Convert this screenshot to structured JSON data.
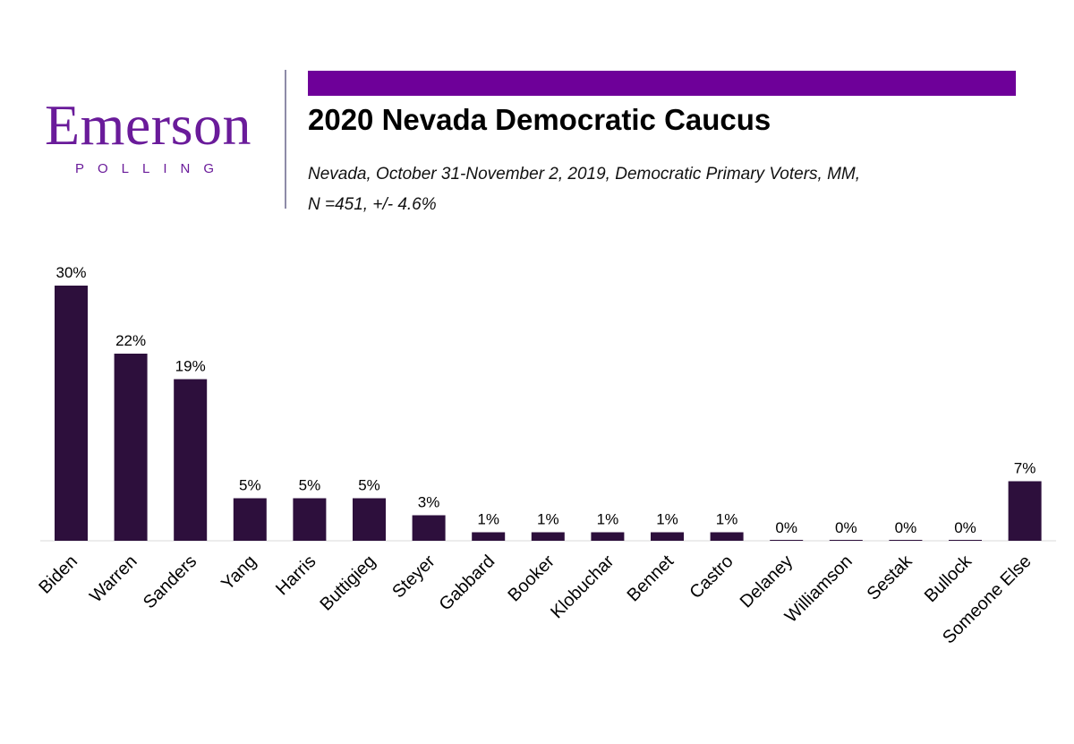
{
  "logo": {
    "word": "Emerson",
    "sub": "POLLING"
  },
  "header": {
    "title": "2020 Nevada Democratic Caucus",
    "subtitle_line1": "Nevada, October 31-November 2, 2019, Democratic Primary Voters, MM,",
    "subtitle_line2": "N =451, +/-  4.6%"
  },
  "colors": {
    "accent": "#6e0099",
    "bar": "#2d0f3c",
    "logo": "#6a1b9a"
  },
  "chart_data": {
    "type": "bar",
    "categories": [
      "Biden",
      "Warren",
      "Sanders",
      "Yang",
      "Harris",
      "Buttigieg",
      "Steyer",
      "Gabbard",
      "Booker",
      "Klobuchar",
      "Bennet",
      "Castro",
      "Delaney",
      "Williamson",
      "Sestak",
      "Bullock",
      "Someone Else"
    ],
    "values": [
      30,
      22,
      19,
      5,
      5,
      5,
      3,
      1,
      1,
      1,
      1,
      1,
      0,
      0,
      0,
      0,
      7
    ],
    "labels": [
      "30%",
      "22%",
      "19%",
      "5%",
      "5%",
      "5%",
      "3%",
      "1%",
      "1%",
      "1%",
      "1%",
      "1%",
      "0%",
      "0%",
      "0%",
      "0%",
      "7%"
    ],
    "title": "",
    "xlabel": "",
    "ylabel": "",
    "ylim": [
      0,
      30
    ],
    "grid": false,
    "legend": "none"
  }
}
